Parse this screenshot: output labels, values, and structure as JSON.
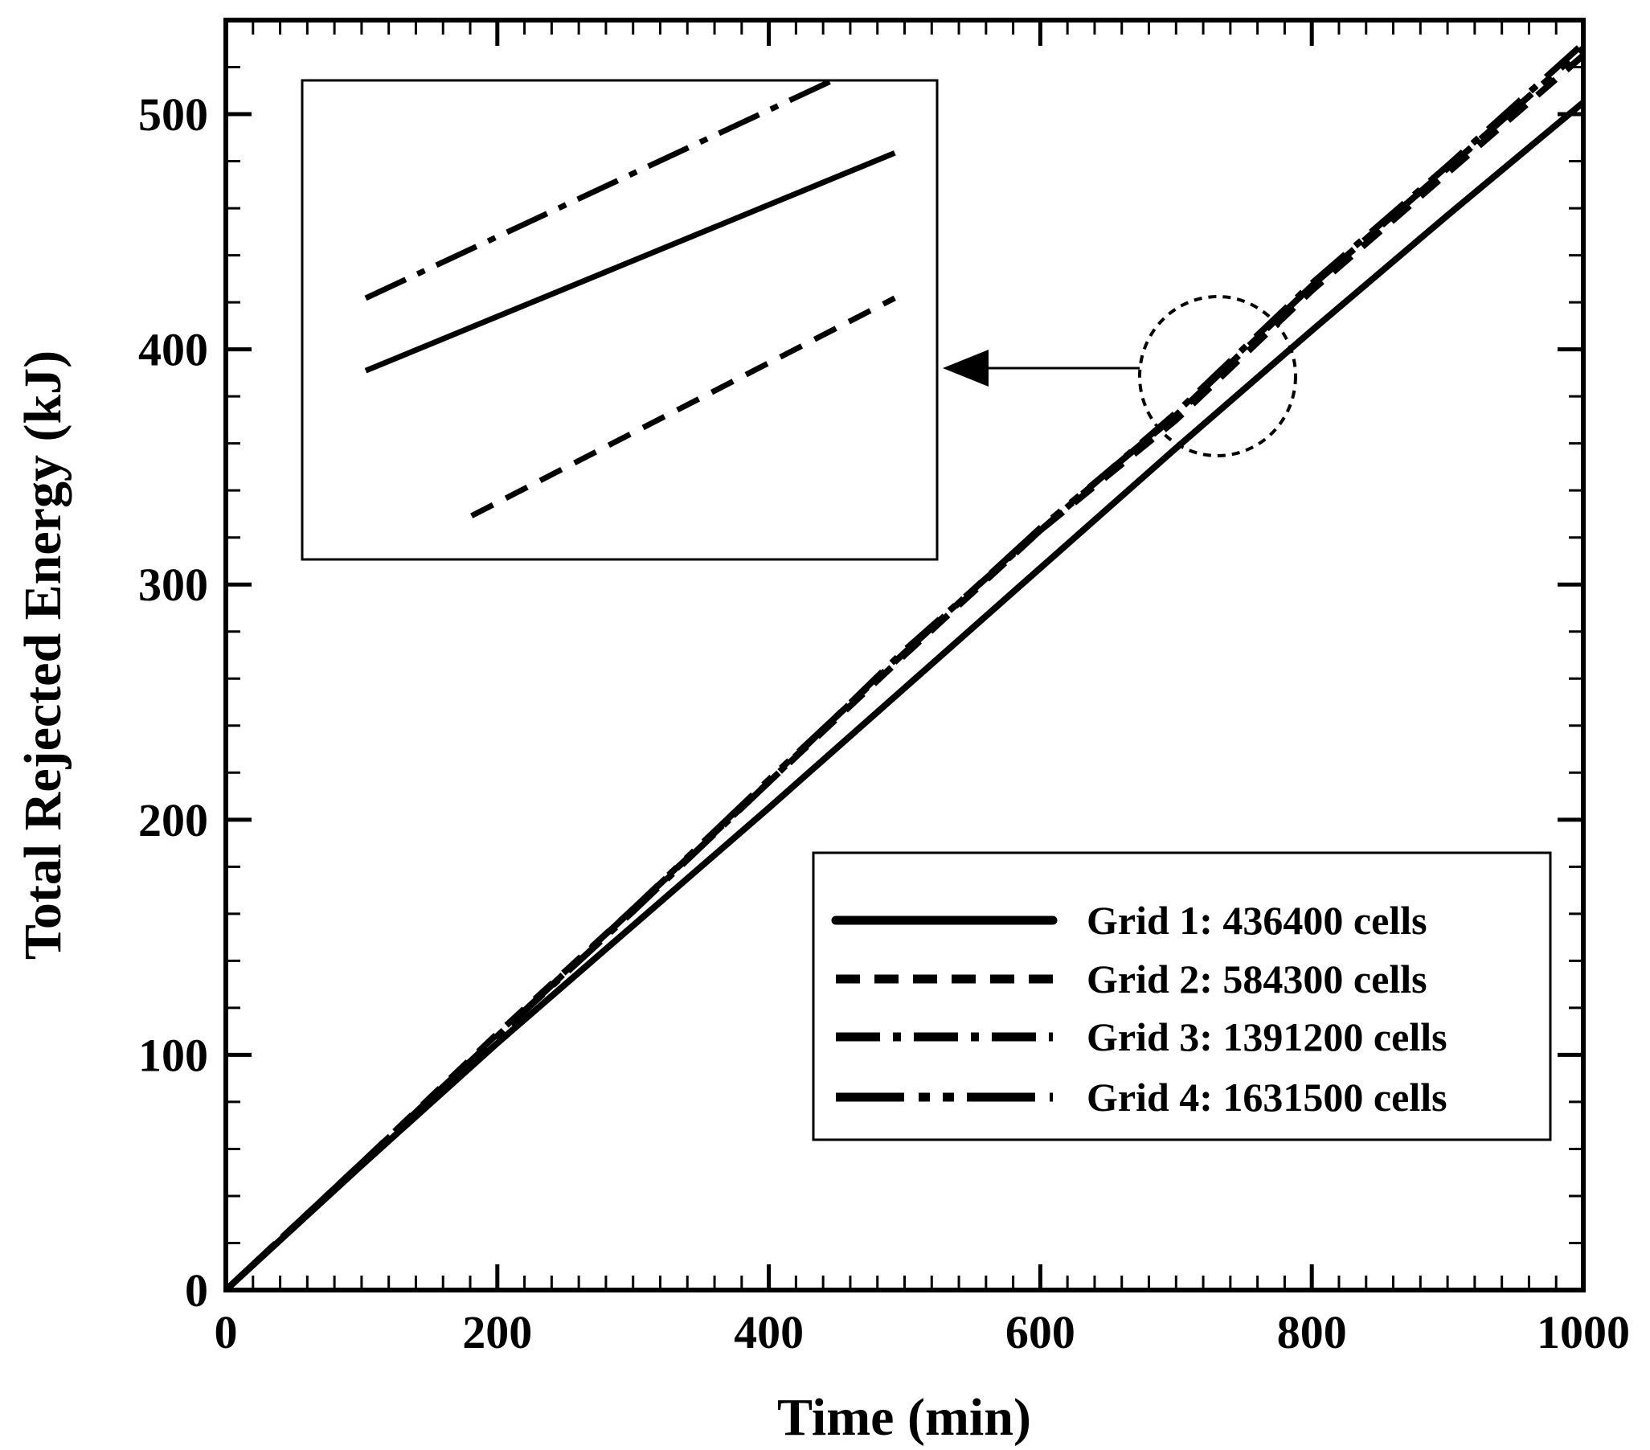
{
  "chart_data": {
    "type": "line",
    "xlabel": "Time (min)",
    "ylabel": "Total Rejected Energy (kJ)",
    "xlim": [
      0,
      1000
    ],
    "ylim": [
      0,
      540
    ],
    "x_ticks": [
      0,
      200,
      400,
      600,
      800,
      1000
    ],
    "y_ticks": [
      0,
      100,
      200,
      300,
      400,
      500
    ],
    "x_tick_labels": [
      "0",
      "200",
      "400",
      "600",
      "800",
      "1000"
    ],
    "y_tick_labels": [
      "0",
      "100",
      "200",
      "300",
      "400",
      "500"
    ],
    "legend_position": "bottom-right",
    "series": [
      {
        "name": "Grid 1: 436400 cells",
        "style": "solid",
        "x": [
          0,
          100,
          200,
          300,
          400,
          500,
          600,
          700,
          800,
          900,
          1000
        ],
        "y": [
          0,
          53,
          105,
          155,
          205,
          256,
          307,
          358,
          408,
          457,
          505
        ]
      },
      {
        "name": "Grid 2: 584300 cells",
        "style": "dash",
        "x": [
          0,
          100,
          200,
          300,
          400,
          500,
          600,
          700,
          800,
          900,
          1000
        ],
        "y": [
          0,
          54,
          109,
          162,
          216,
          270,
          323,
          370,
          425,
          475,
          525
        ]
      },
      {
        "name": "Grid 3: 1391200 cells",
        "style": "dashdot",
        "x": [
          0,
          100,
          200,
          300,
          400,
          500,
          600,
          700,
          800,
          900,
          1000
        ],
        "y": [
          0,
          54,
          108,
          161,
          216,
          272,
          323,
          373,
          428,
          478,
          530
        ]
      },
      {
        "name": "Grid 4: 1631500 cells",
        "style": "longdash-dot",
        "x": [
          0,
          100,
          200,
          300,
          400,
          500,
          600,
          700,
          800,
          900,
          1000
        ],
        "y": [
          0,
          54,
          108,
          162,
          217,
          271,
          324,
          372,
          427,
          477,
          528
        ]
      }
    ],
    "inset": {
      "zoom_center": [
        715,
        385
      ],
      "series": [
        {
          "name": "Grid 3: 1391200 cells",
          "style": "dashdot",
          "x": [
            725,
            750
          ],
          "y": [
            391,
            408
          ]
        },
        {
          "name": "Grid 1: 436400 cells",
          "style": "solid",
          "x": [
            725,
            750
          ],
          "y": [
            386,
            401
          ]
        },
        {
          "name": "Grid 2: 584300 cells",
          "style": "dash",
          "x": [
            730,
            750
          ],
          "y": [
            376,
            391
          ]
        }
      ]
    }
  }
}
